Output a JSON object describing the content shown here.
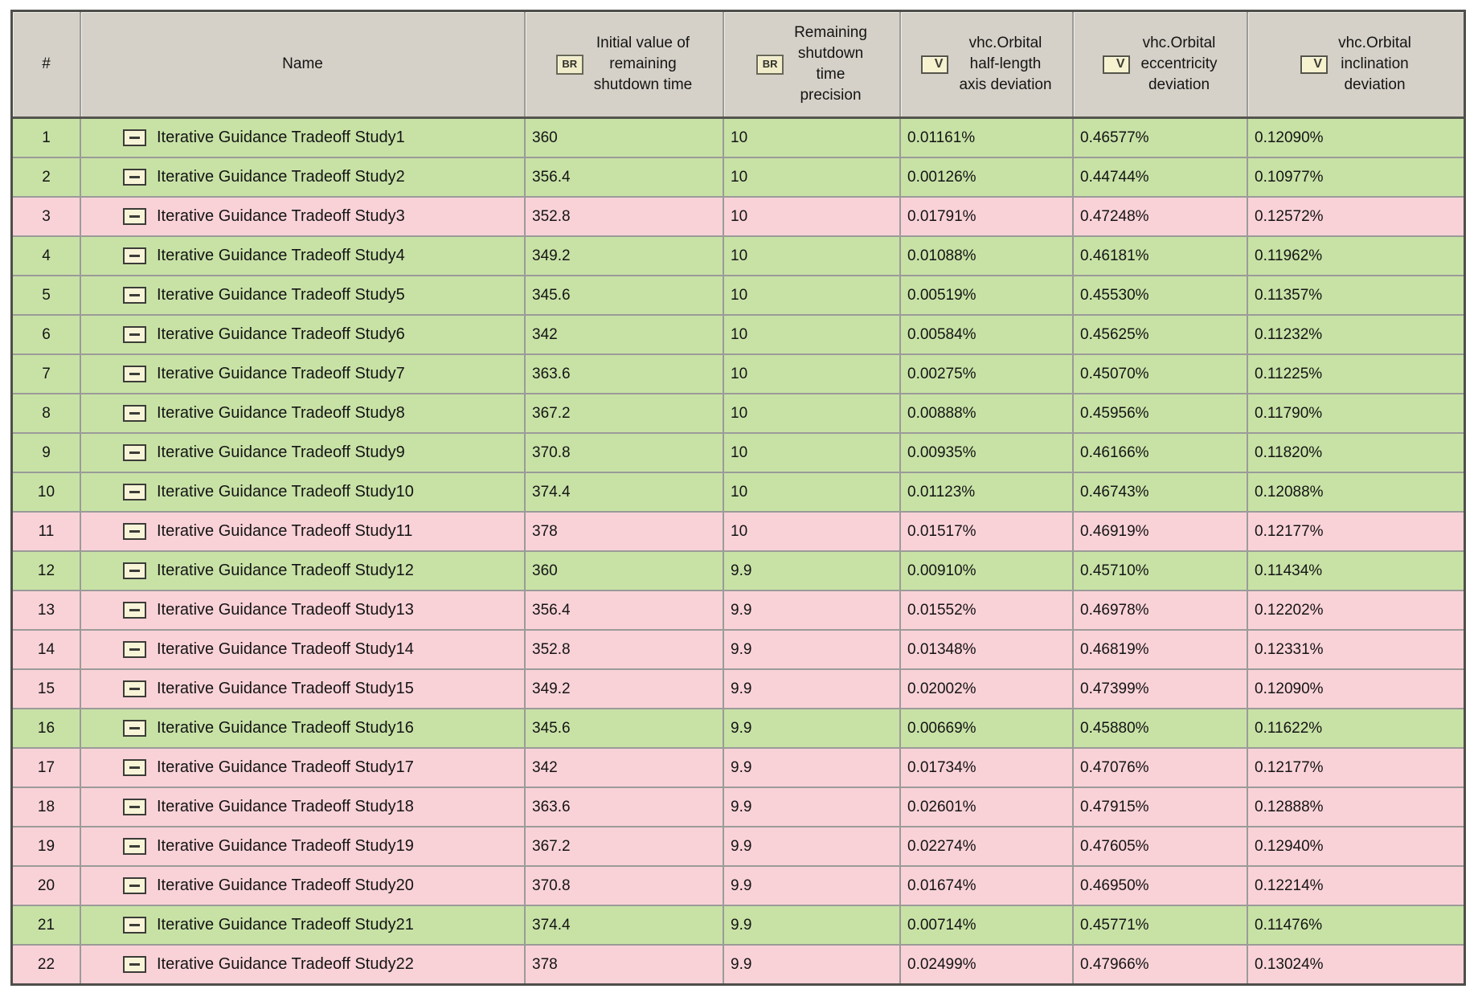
{
  "colors": {
    "row_pass_green": "#c8e2a6",
    "row_fail_pink": "#f9d2d8",
    "header_gray": "#d5d1c8",
    "grid_line": "#9b9b98",
    "outer_border": "#4e4e4a",
    "icon_cream": "#f0ecca"
  },
  "table": {
    "columns": [
      {
        "label": "#",
        "text": "#",
        "icon": null
      },
      {
        "label": "Name",
        "text": "Name",
        "icon": null
      },
      {
        "label": "Initial value of remaining shutdown time",
        "text": "Initial value of\nremaining\nshutdown time",
        "icon": "BR"
      },
      {
        "label": "Remaining shutdown time precision",
        "text": "Remaining\nshutdown\ntime\nprecision",
        "icon": "BR"
      },
      {
        "label": "vhc.Orbital half-length axis deviation",
        "text": "vhc.Orbital\nhalf-length\naxis deviation",
        "icon": "V"
      },
      {
        "label": "vhc.Orbital eccentricity deviation",
        "text": "vhc.Orbital\neccentricity\ndeviation",
        "icon": "V"
      },
      {
        "label": "vhc.Orbital inclination deviation",
        "text": "vhc.Orbital\ninclination\ndeviation",
        "icon": "V"
      }
    ],
    "icon_labels": {
      "br": "BR",
      "v": "V"
    },
    "rows": [
      {
        "num": "1",
        "name": "Iterative Guidance Tradeoff Study1",
        "initial": "360",
        "precision": "10",
        "half_length": "0.01161%",
        "eccentricity": "0.46577%",
        "inclination": "0.12090%",
        "status": "green"
      },
      {
        "num": "2",
        "name": "Iterative Guidance Tradeoff Study2",
        "initial": "356.4",
        "precision": "10",
        "half_length": "0.00126%",
        "eccentricity": "0.44744%",
        "inclination": "0.10977%",
        "status": "green"
      },
      {
        "num": "3",
        "name": "Iterative Guidance Tradeoff Study3",
        "initial": "352.8",
        "precision": "10",
        "half_length": "0.01791%",
        "eccentricity": "0.47248%",
        "inclination": "0.12572%",
        "status": "pink"
      },
      {
        "num": "4",
        "name": "Iterative Guidance Tradeoff Study4",
        "initial": "349.2",
        "precision": "10",
        "half_length": "0.01088%",
        "eccentricity": "0.46181%",
        "inclination": "0.11962%",
        "status": "green"
      },
      {
        "num": "5",
        "name": "Iterative Guidance Tradeoff Study5",
        "initial": "345.6",
        "precision": "10",
        "half_length": "0.00519%",
        "eccentricity": "0.45530%",
        "inclination": "0.11357%",
        "status": "green"
      },
      {
        "num": "6",
        "name": "Iterative Guidance Tradeoff Study6",
        "initial": "342",
        "precision": "10",
        "half_length": "0.00584%",
        "eccentricity": "0.45625%",
        "inclination": "0.11232%",
        "status": "green"
      },
      {
        "num": "7",
        "name": "Iterative Guidance Tradeoff Study7",
        "initial": "363.6",
        "precision": "10",
        "half_length": "0.00275%",
        "eccentricity": "0.45070%",
        "inclination": "0.11225%",
        "status": "green"
      },
      {
        "num": "8",
        "name": "Iterative Guidance Tradeoff Study8",
        "initial": "367.2",
        "precision": "10",
        "half_length": "0.00888%",
        "eccentricity": "0.45956%",
        "inclination": "0.11790%",
        "status": "green"
      },
      {
        "num": "9",
        "name": "Iterative Guidance Tradeoff Study9",
        "initial": "370.8",
        "precision": "10",
        "half_length": "0.00935%",
        "eccentricity": "0.46166%",
        "inclination": "0.11820%",
        "status": "green"
      },
      {
        "num": "10",
        "name": "Iterative Guidance Tradeoff Study10",
        "initial": "374.4",
        "precision": "10",
        "half_length": "0.01123%",
        "eccentricity": "0.46743%",
        "inclination": "0.12088%",
        "status": "green"
      },
      {
        "num": "11",
        "name": "Iterative Guidance Tradeoff Study11",
        "initial": "378",
        "precision": "10",
        "half_length": "0.01517%",
        "eccentricity": "0.46919%",
        "inclination": "0.12177%",
        "status": "pink"
      },
      {
        "num": "12",
        "name": "Iterative Guidance Tradeoff Study12",
        "initial": "360",
        "precision": "9.9",
        "half_length": "0.00910%",
        "eccentricity": "0.45710%",
        "inclination": "0.11434%",
        "status": "green"
      },
      {
        "num": "13",
        "name": "Iterative Guidance Tradeoff Study13",
        "initial": "356.4",
        "precision": "9.9",
        "half_length": "0.01552%",
        "eccentricity": "0.46978%",
        "inclination": "0.12202%",
        "status": "pink"
      },
      {
        "num": "14",
        "name": "Iterative Guidance Tradeoff Study14",
        "initial": "352.8",
        "precision": "9.9",
        "half_length": "0.01348%",
        "eccentricity": "0.46819%",
        "inclination": "0.12331%",
        "status": "pink"
      },
      {
        "num": "15",
        "name": "Iterative Guidance Tradeoff Study15",
        "initial": "349.2",
        "precision": "9.9",
        "half_length": "0.02002%",
        "eccentricity": "0.47399%",
        "inclination": "0.12090%",
        "status": "pink"
      },
      {
        "num": "16",
        "name": "Iterative Guidance Tradeoff Study16",
        "initial": "345.6",
        "precision": "9.9",
        "half_length": "0.00669%",
        "eccentricity": "0.45880%",
        "inclination": "0.11622%",
        "status": "green"
      },
      {
        "num": "17",
        "name": "Iterative Guidance Tradeoff Study17",
        "initial": "342",
        "precision": "9.9",
        "half_length": "0.01734%",
        "eccentricity": "0.47076%",
        "inclination": "0.12177%",
        "status": "pink"
      },
      {
        "num": "18",
        "name": "Iterative Guidance Tradeoff Study18",
        "initial": "363.6",
        "precision": "9.9",
        "half_length": "0.02601%",
        "eccentricity": "0.47915%",
        "inclination": "0.12888%",
        "status": "pink"
      },
      {
        "num": "19",
        "name": "Iterative Guidance Tradeoff Study19",
        "initial": "367.2",
        "precision": "9.9",
        "half_length": "0.02274%",
        "eccentricity": "0.47605%",
        "inclination": "0.12940%",
        "status": "pink"
      },
      {
        "num": "20",
        "name": "Iterative Guidance Tradeoff Study20",
        "initial": "370.8",
        "precision": "9.9",
        "half_length": "0.01674%",
        "eccentricity": "0.46950%",
        "inclination": "0.12214%",
        "status": "pink"
      },
      {
        "num": "21",
        "name": "Iterative Guidance Tradeoff Study21",
        "initial": "374.4",
        "precision": "9.9",
        "half_length": "0.00714%",
        "eccentricity": "0.45771%",
        "inclination": "0.11476%",
        "status": "green"
      },
      {
        "num": "22",
        "name": "Iterative Guidance Tradeoff Study22",
        "initial": "378",
        "precision": "9.9",
        "half_length": "0.02499%",
        "eccentricity": "0.47966%",
        "inclination": "0.13024%",
        "status": "pink"
      }
    ]
  }
}
